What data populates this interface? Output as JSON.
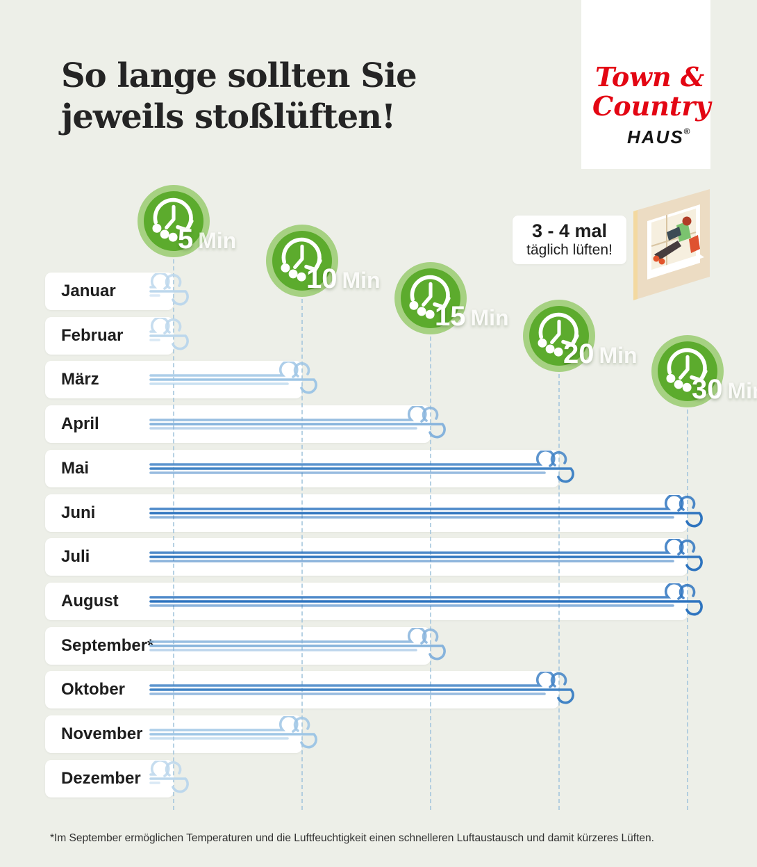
{
  "page": {
    "title_line1": "So lange sollten Sie",
    "title_line2": "jeweils stoßlüften!",
    "footnote": "*Im September ermöglichen Temperaturen und die Luftfeuchtigkeit einen schnelleren Luftaustausch und damit kürzeres Lüften."
  },
  "logo": {
    "line1": "Town &",
    "line2": "Country",
    "line3": "HAUS",
    "registered": "®"
  },
  "callout": {
    "line1": "3 - 4 mal",
    "line2": "täglich lüften!"
  },
  "columns": [
    {
      "value": "5",
      "unit": "Min",
      "minutes": 5
    },
    {
      "value": "10",
      "unit": "Min",
      "minutes": 10
    },
    {
      "value": "15",
      "unit": "Min",
      "minutes": 15
    },
    {
      "value": "20",
      "unit": "Min",
      "minutes": 20
    },
    {
      "value": "30",
      "unit": "Min",
      "minutes": 30
    }
  ],
  "months": [
    {
      "label": "Januar",
      "minutes": 5
    },
    {
      "label": "Februar",
      "minutes": 5
    },
    {
      "label": "März",
      "minutes": 10
    },
    {
      "label": "April",
      "minutes": 15
    },
    {
      "label": "Mai",
      "minutes": 20
    },
    {
      "label": "Juni",
      "minutes": 30
    },
    {
      "label": "Juli",
      "minutes": 30
    },
    {
      "label": "August",
      "minutes": 30
    },
    {
      "label": "September*",
      "minutes": 15
    },
    {
      "label": "Oktober",
      "minutes": 20
    },
    {
      "label": "November",
      "minutes": 10
    },
    {
      "label": "Dezember",
      "minutes": 5
    }
  ],
  "colors": {
    "background": "#edefe8",
    "clock_inner_green": "#5cab2d",
    "clock_ring_green": "#a6d182",
    "logo_red": "#e30613",
    "text_dark": "#1d1d1d",
    "dash_blue": "#a5c6dd",
    "wind_5": "#bcd7ec",
    "wind_10": "#9fc6e5",
    "wind_15": "#86b3dc",
    "wind_20": "#4183c5",
    "wind_30": "#2e74bf"
  },
  "chart_data": {
    "type": "bar",
    "orientation": "horizontal",
    "title": "So lange sollten Sie jeweils stoßlüften!",
    "categories": [
      "Januar",
      "Februar",
      "März",
      "April",
      "Mai",
      "Juni",
      "Juli",
      "August",
      "September*",
      "Oktober",
      "November",
      "Dezember"
    ],
    "values": [
      5,
      5,
      10,
      15,
      20,
      30,
      30,
      30,
      15,
      20,
      10,
      5
    ],
    "unit": "Min",
    "value_ticks": [
      5,
      10,
      15,
      20,
      30
    ],
    "annotation": "3 - 4 mal täglich lüften!",
    "footnote": "*Im September ermöglichen Temperaturen und die Luftfeuchtigkeit einen schnelleren Luftaustausch und damit kürzeres Lüften.",
    "grid": "dashed vertical guides at each duration tick",
    "legend_position": "none"
  }
}
